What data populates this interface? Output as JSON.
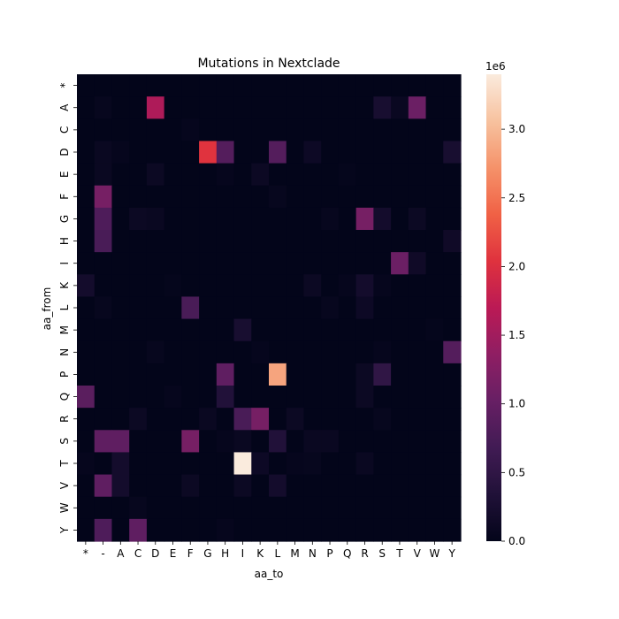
{
  "chart_data": {
    "type": "heatmap",
    "title": "Mutations in Nextclade",
    "xlabel": "aa_to",
    "ylabel": "aa_from",
    "x_categories": [
      "*",
      "-",
      "A",
      "C",
      "D",
      "E",
      "F",
      "G",
      "H",
      "I",
      "K",
      "L",
      "M",
      "N",
      "P",
      "Q",
      "R",
      "S",
      "T",
      "V",
      "W",
      "Y"
    ],
    "y_categories": [
      "*",
      "A",
      "C",
      "D",
      "E",
      "F",
      "G",
      "H",
      "I",
      "K",
      "L",
      "M",
      "N",
      "P",
      "Q",
      "R",
      "S",
      "T",
      "V",
      "W",
      "Y"
    ],
    "values": [
      [
        0,
        0,
        0,
        0,
        0,
        0,
        0,
        0,
        0,
        0,
        0,
        0,
        0,
        0,
        0,
        0,
        0,
        0,
        0,
        0,
        0,
        0
      ],
      [
        0,
        50000,
        0,
        0,
        1600000,
        0,
        0,
        0,
        0,
        0,
        0,
        0,
        0,
        0,
        0,
        0,
        0,
        250000,
        80000,
        1050000,
        0,
        0
      ],
      [
        0,
        0,
        0,
        0,
        0,
        0,
        30000,
        0,
        0,
        0,
        0,
        0,
        0,
        0,
        0,
        0,
        0,
        0,
        0,
        0,
        0,
        0
      ],
      [
        0,
        80000,
        30000,
        0,
        0,
        0,
        0,
        2050000,
        850000,
        0,
        0,
        850000,
        0,
        120000,
        0,
        0,
        0,
        0,
        0,
        0,
        0,
        250000
      ],
      [
        0,
        80000,
        0,
        0,
        100000,
        0,
        0,
        0,
        30000,
        0,
        100000,
        0,
        0,
        0,
        0,
        20000,
        0,
        0,
        0,
        0,
        0,
        0
      ],
      [
        0,
        1150000,
        0,
        0,
        0,
        0,
        0,
        0,
        0,
        0,
        0,
        50000,
        0,
        0,
        0,
        0,
        0,
        0,
        0,
        0,
        0,
        0
      ],
      [
        0,
        800000,
        0,
        100000,
        80000,
        0,
        0,
        0,
        0,
        0,
        0,
        0,
        0,
        0,
        50000,
        0,
        1150000,
        200000,
        0,
        100000,
        0,
        0
      ],
      [
        0,
        750000,
        0,
        0,
        0,
        0,
        0,
        0,
        0,
        0,
        0,
        0,
        0,
        0,
        0,
        0,
        0,
        0,
        0,
        0,
        0,
        150000
      ],
      [
        0,
        0,
        0,
        0,
        0,
        0,
        0,
        0,
        0,
        0,
        0,
        0,
        0,
        0,
        0,
        0,
        0,
        0,
        1050000,
        150000,
        0,
        0
      ],
      [
        200000,
        0,
        0,
        0,
        0,
        20000,
        0,
        0,
        0,
        0,
        0,
        0,
        0,
        100000,
        0,
        30000,
        200000,
        30000,
        0,
        0,
        0,
        0
      ],
      [
        0,
        50000,
        0,
        0,
        0,
        0,
        750000,
        0,
        0,
        0,
        0,
        0,
        0,
        0,
        50000,
        0,
        120000,
        0,
        0,
        0,
        0,
        0
      ],
      [
        0,
        0,
        0,
        0,
        0,
        0,
        0,
        0,
        0,
        250000,
        0,
        0,
        0,
        0,
        0,
        0,
        0,
        0,
        0,
        0,
        20000,
        0
      ],
      [
        0,
        0,
        0,
        0,
        50000,
        0,
        0,
        0,
        0,
        0,
        30000,
        0,
        0,
        0,
        0,
        0,
        0,
        30000,
        0,
        0,
        0,
        850000
      ],
      [
        0,
        0,
        0,
        0,
        0,
        0,
        0,
        0,
        950000,
        0,
        0,
        2850000,
        0,
        0,
        0,
        0,
        100000,
        500000,
        0,
        0,
        0,
        0
      ],
      [
        900000,
        0,
        0,
        0,
        0,
        30000,
        0,
        0,
        350000,
        0,
        0,
        0,
        0,
        0,
        0,
        0,
        100000,
        0,
        0,
        0,
        0,
        0
      ],
      [
        0,
        0,
        0,
        100000,
        0,
        0,
        0,
        80000,
        0,
        750000,
        1150000,
        0,
        100000,
        0,
        0,
        0,
        0,
        50000,
        0,
        0,
        0,
        0
      ],
      [
        0,
        950000,
        950000,
        0,
        0,
        0,
        1150000,
        0,
        30000,
        80000,
        0,
        350000,
        0,
        80000,
        80000,
        0,
        0,
        0,
        0,
        0,
        0,
        0
      ],
      [
        30000,
        0,
        200000,
        0,
        0,
        0,
        0,
        0,
        0,
        3400000,
        120000,
        0,
        30000,
        50000,
        0,
        0,
        80000,
        0,
        0,
        0,
        0,
        0
      ],
      [
        0,
        950000,
        200000,
        0,
        0,
        0,
        100000,
        0,
        0,
        100000,
        0,
        200000,
        0,
        0,
        0,
        0,
        0,
        0,
        0,
        0,
        0,
        0
      ],
      [
        0,
        0,
        0,
        50000,
        0,
        0,
        0,
        0,
        0,
        0,
        0,
        0,
        0,
        0,
        0,
        0,
        0,
        0,
        0,
        0,
        0,
        0
      ],
      [
        0,
        800000,
        0,
        950000,
        0,
        0,
        0,
        0,
        30000,
        0,
        0,
        0,
        0,
        0,
        0,
        0,
        0,
        0,
        0,
        0,
        0,
        0
      ]
    ],
    "colorbar": {
      "colormap": "rocket",
      "min": 0,
      "max": 3400000,
      "ticks": [
        0.0,
        0.5,
        1.0,
        1.5,
        2.0,
        2.5,
        3.0
      ],
      "multiplier_label": "1e6"
    }
  }
}
